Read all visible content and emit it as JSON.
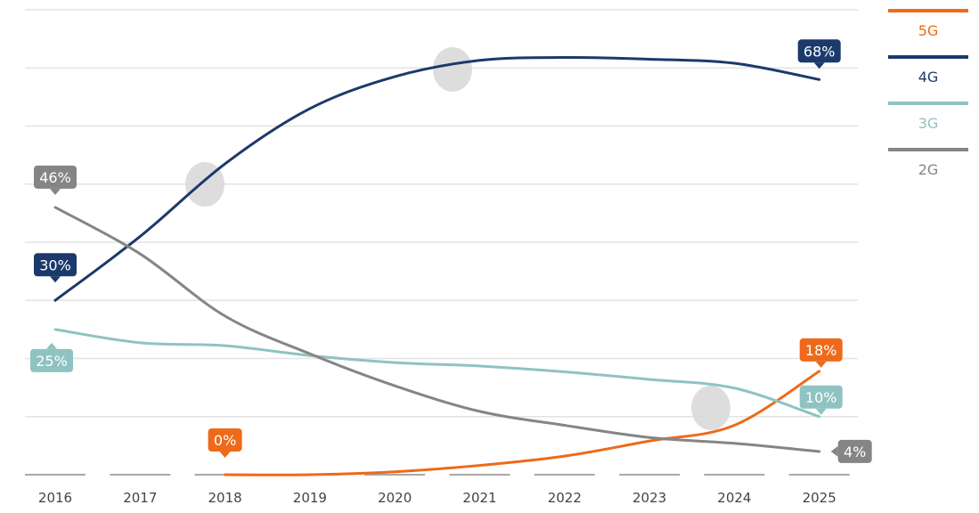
{
  "chart_data": {
    "type": "line",
    "x": [
      "2016",
      "2017",
      "2018",
      "2019",
      "2020",
      "2021",
      "2022",
      "2023",
      "2024",
      "2025"
    ],
    "ylim": [
      0,
      80
    ],
    "grid": true,
    "legend_position": "top-right",
    "series": [
      {
        "name": "5G",
        "color": "#ee6a1a",
        "values": [
          null,
          null,
          0,
          0,
          0.5,
          1.6,
          3.2,
          5.8,
          8.5,
          17.8
        ]
      },
      {
        "name": "4G",
        "color": "#1b3a6b",
        "values": [
          30,
          41,
          53.5,
          63,
          68.5,
          71.3,
          71.8,
          71.5,
          70.8,
          68
        ]
      },
      {
        "name": "3G",
        "color": "#8fc3c1",
        "values": [
          25,
          22.7,
          22.2,
          20.5,
          19.3,
          18.7,
          17.7,
          16.4,
          14.9,
          10
        ]
      },
      {
        "name": "2G",
        "color": "#858585",
        "values": [
          46,
          38,
          27.3,
          20.8,
          15.3,
          10.9,
          8.5,
          6.4,
          5.4,
          4
        ]
      }
    ],
    "annotations": [
      {
        "series": "4G",
        "x": "2016",
        "text": "30%"
      },
      {
        "series": "4G",
        "x": "2025",
        "text": "68%"
      },
      {
        "series": "2G",
        "x": "2016",
        "text": "46%"
      },
      {
        "series": "2G",
        "x": "2025",
        "text": "4%"
      },
      {
        "series": "3G",
        "x": "2016",
        "text": "25%"
      },
      {
        "series": "3G",
        "x": "2025",
        "text": "10%"
      },
      {
        "series": "5G",
        "x": "2018",
        "text": "0%"
      },
      {
        "series": "5G",
        "x": "2025",
        "text": "18%"
      }
    ]
  }
}
